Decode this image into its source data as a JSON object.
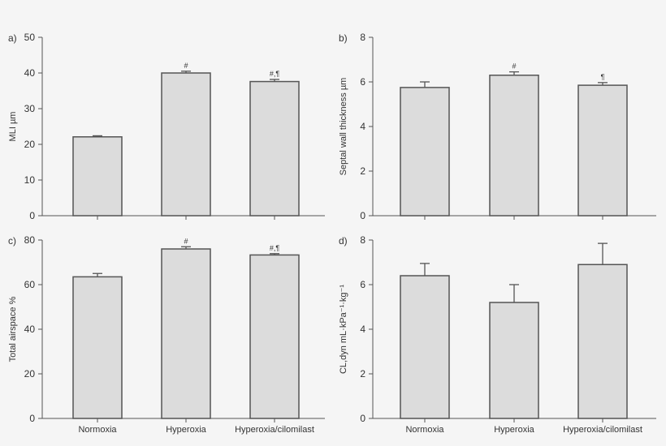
{
  "chart_data": [
    {
      "type": "bar",
      "panel_label": "a)",
      "ylabel": "MLI µm",
      "ylim": [
        0,
        50
      ],
      "yticks": [
        0,
        10,
        20,
        30,
        40,
        50
      ],
      "categories": [
        "Normoxia",
        "Hyperoxia",
        "Hyperoxia/cilomilast"
      ],
      "values": [
        22.1,
        40.0,
        37.6
      ],
      "errors": [
        0.3,
        0.5,
        0.6
      ],
      "annotations": [
        "",
        "#",
        "#,¶"
      ],
      "show_xlabels": false
    },
    {
      "type": "bar",
      "panel_label": "b)",
      "ylabel": "Septal wall thickness µm",
      "ylim": [
        0,
        8
      ],
      "yticks": [
        0,
        2,
        4,
        6,
        8
      ],
      "categories": [
        "Normoxia",
        "Hyperoxia",
        "Hyperoxia/cilomilast"
      ],
      "values": [
        5.75,
        6.3,
        5.85
      ],
      "errors": [
        0.25,
        0.15,
        0.12
      ],
      "annotations": [
        "",
        "#",
        "¶"
      ],
      "show_xlabels": false
    },
    {
      "type": "bar",
      "panel_label": "c)",
      "ylabel": "Total airspace %",
      "ylim": [
        0,
        80
      ],
      "yticks": [
        0,
        20,
        40,
        60,
        80
      ],
      "categories": [
        "Normoxia",
        "Hyperoxia",
        "Hyperoxia/cilomilast"
      ],
      "values": [
        63.5,
        76.0,
        73.3
      ],
      "errors": [
        1.5,
        1.0,
        0.6
      ],
      "annotations": [
        "",
        "#",
        "#,¶"
      ],
      "show_xlabels": true
    },
    {
      "type": "bar",
      "panel_label": "d)",
      "ylabel": "CL,dyn mL·kPa⁻¹·kg⁻¹",
      "ylim": [
        0,
        8
      ],
      "yticks": [
        0,
        2,
        4,
        6,
        8
      ],
      "categories": [
        "Normoxia",
        "Hyperoxia",
        "Hyperoxia/cilomilast"
      ],
      "values": [
        6.4,
        5.2,
        6.9
      ],
      "errors": [
        0.55,
        0.8,
        0.95
      ],
      "annotations": [
        "",
        "",
        ""
      ],
      "show_xlabels": true
    }
  ],
  "colors": {
    "bar_fill": "#dcdcdc",
    "bar_stroke": "#555555",
    "axis": "#555555",
    "background": "#f5f5f5"
  }
}
